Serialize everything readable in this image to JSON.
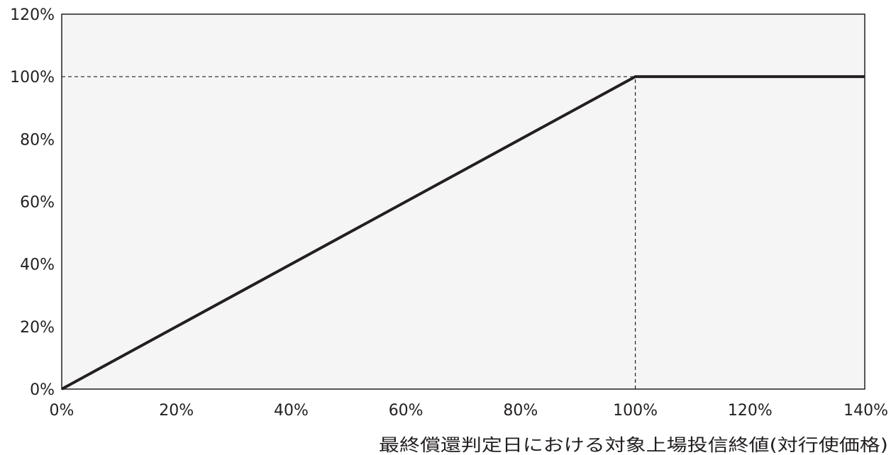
{
  "chart_data": {
    "type": "line",
    "title": "",
    "xlabel": "最終償還判定日における対象上場投信終値(対行使価格)",
    "ylabel": "",
    "xlim": [
      0,
      140
    ],
    "ylim": [
      0,
      120
    ],
    "x_ticks": [
      "0%",
      "20%",
      "40%",
      "60%",
      "80%",
      "100%",
      "120%",
      "140%"
    ],
    "y_ticks": [
      "0%",
      "20%",
      "40%",
      "60%",
      "80%",
      "100%",
      "120%"
    ],
    "grid": false,
    "series": [
      {
        "x": [
          0,
          100,
          140
        ],
        "y": [
          0,
          100,
          100
        ]
      }
    ],
    "reference_lines": [
      {
        "orientation": "horizontal",
        "value": 100,
        "from": 0,
        "to": 100,
        "style": "dashed"
      },
      {
        "orientation": "vertical",
        "value": 100,
        "from": 0,
        "to": 100,
        "style": "dashed"
      }
    ],
    "colors": {
      "line": "#231f20",
      "plot_background": "#f5f5f5",
      "axis": "#231f20"
    }
  }
}
